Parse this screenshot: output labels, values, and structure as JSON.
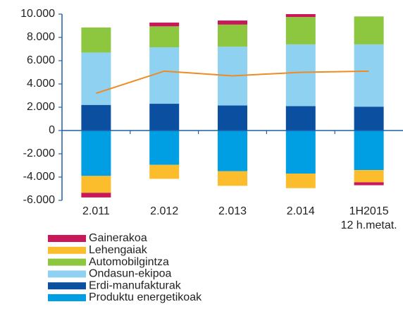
{
  "chart_data": {
    "type": "bar",
    "stacked": true,
    "categories": [
      "2.011",
      "2.012",
      "2.013",
      "2.014",
      "1H2015\n12 h.metat."
    ],
    "ylim": [
      -6000,
      10000
    ],
    "yticks": [
      {
        "value": -6000,
        "label": "-6.000"
      },
      {
        "value": -4000,
        "label": "-4.000"
      },
      {
        "value": -2000,
        "label": "-2.000"
      },
      0,
      {
        "value": 2000,
        "label": "2.000"
      },
      {
        "value": 4000,
        "label": "4.000"
      },
      {
        "value": 6000,
        "label": "6.000"
      },
      {
        "value": 8000,
        "label": "8.000"
      },
      {
        "value": 10000,
        "label": "10.000"
      }
    ],
    "series": [
      {
        "name": "Gainerakoa",
        "color": "#c8185a",
        "values": [
          -400,
          320,
          350,
          250,
          -250
        ]
      },
      {
        "name": "Lehengaiak",
        "color": "#fbbd2c",
        "values": [
          -1450,
          -1200,
          -1250,
          -1250,
          -1050
        ]
      },
      {
        "name": "Automobilgintza",
        "color": "#8dc63f",
        "values": [
          2150,
          1800,
          1900,
          2350,
          2400
        ]
      },
      {
        "name": "Ondasun-ekipoa",
        "color": "#8ed1f0",
        "values": [
          4500,
          4850,
          5050,
          5300,
          5350
        ]
      },
      {
        "name": "Erdi-manufakturak",
        "color": "#0b4fa0",
        "values": [
          2200,
          2300,
          2150,
          2100,
          2050
        ]
      },
      {
        "name": "Produktu energetikoak",
        "color": "#009fe3",
        "values": [
          -3900,
          -2950,
          -3500,
          -3700,
          -3400
        ]
      }
    ],
    "line": {
      "type": "line",
      "color": "#f08a24",
      "values": [
        3200,
        5100,
        4700,
        5000,
        5100
      ]
    }
  }
}
